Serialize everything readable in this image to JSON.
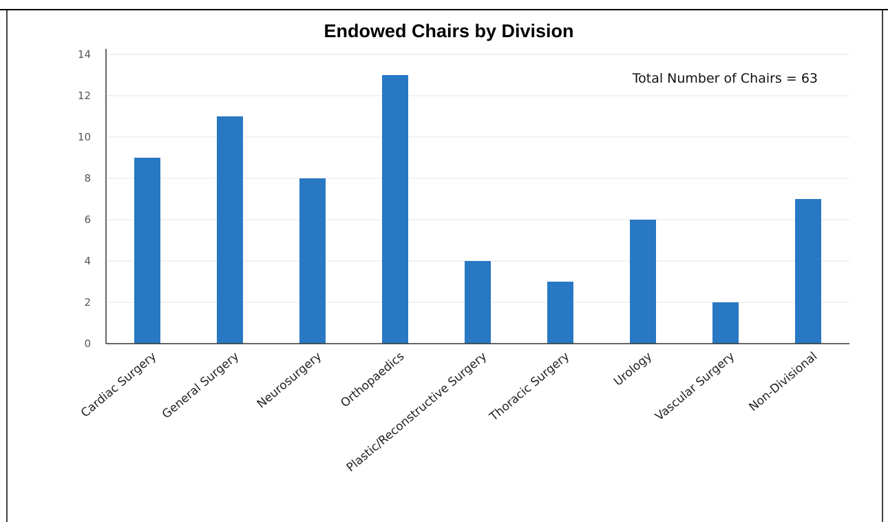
{
  "chart_data": {
    "type": "bar",
    "title": "Endowed Chairs by Division",
    "xlabel": "",
    "ylabel": "",
    "categories": [
      "Cardiac Surgery",
      "General Surgery",
      "Neurosurgery",
      "Orthopaedics",
      "Plastic/Reconstructive Surgery",
      "Thoracic Surgery",
      "Urology",
      "Vascular Surgery",
      "Non-Divisional"
    ],
    "series": [
      {
        "values": [
          9,
          11,
          8,
          13,
          4,
          3,
          6,
          2,
          7
        ]
      }
    ],
    "ylim": [
      0,
      14
    ],
    "yticks": [
      0,
      2,
      4,
      6,
      8,
      10,
      12,
      14
    ],
    "annotation": "Total Number of Chairs = 63",
    "grid": true,
    "bar_color": "#2878c3",
    "grid_color": "#e6e6e6",
    "axis_color": "#333333"
  }
}
